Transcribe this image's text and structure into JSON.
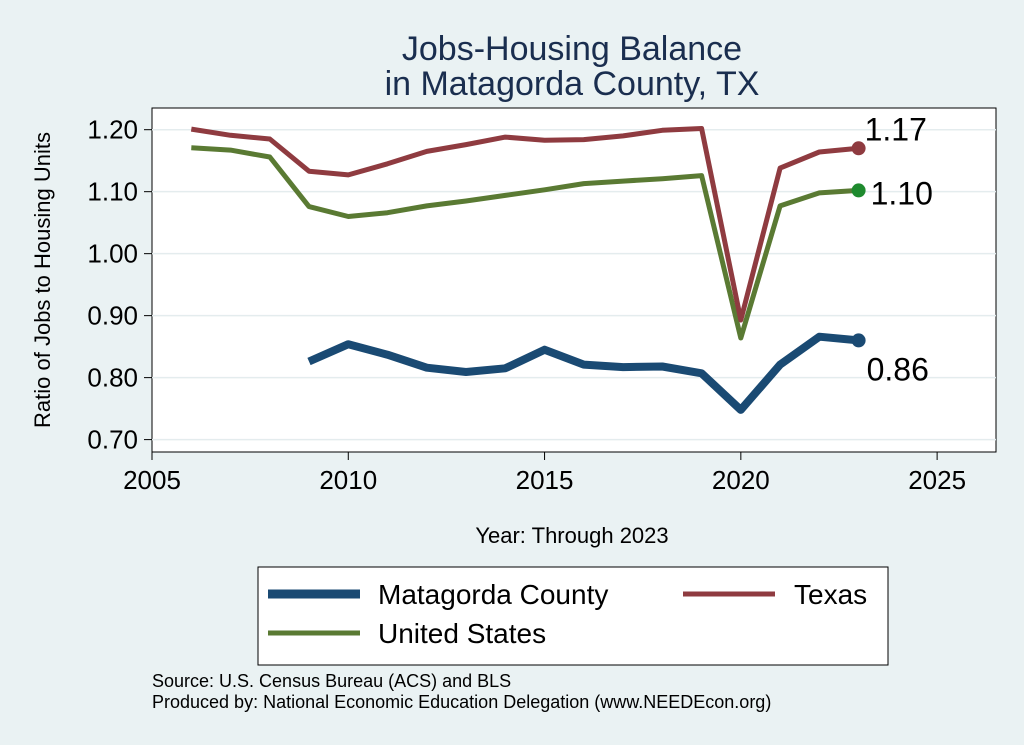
{
  "chart_data": {
    "type": "line",
    "title": [
      "Jobs-Housing Balance",
      "in Matagorda County, TX"
    ],
    "xlabel": "Year: Through 2023",
    "ylabel": "Ratio of Jobs to Housing Units",
    "xlim": [
      2005,
      2026.5
    ],
    "ylim": [
      0.68,
      1.235
    ],
    "xticks": [
      2005,
      2010,
      2015,
      2020,
      2025
    ],
    "yticks": [
      0.7,
      0.8,
      0.9,
      1.0,
      1.1,
      1.2
    ],
    "ytick_labels": [
      "0.70",
      "0.80",
      "0.90",
      "1.00",
      "1.10",
      "1.20"
    ],
    "grid": true,
    "series": [
      {
        "name": "Matagorda County",
        "color": "#1a4a73",
        "x": [
          2009,
          2010,
          2011,
          2012,
          2013,
          2014,
          2015,
          2016,
          2017,
          2018,
          2019,
          2020,
          2021,
          2022,
          2023
        ],
        "y": [
          0.826,
          0.854,
          0.837,
          0.816,
          0.809,
          0.815,
          0.845,
          0.821,
          0.817,
          0.818,
          0.807,
          0.748,
          0.821,
          0.866,
          0.86
        ],
        "end_label": "0.86",
        "end_marker_color": "#1a4a73"
      },
      {
        "name": "Texas",
        "color": "#8f3b40",
        "x": [
          2006,
          2007,
          2008,
          2009,
          2010,
          2011,
          2012,
          2013,
          2014,
          2015,
          2016,
          2017,
          2018,
          2019,
          2020,
          2021,
          2022,
          2023
        ],
        "y": [
          1.201,
          1.191,
          1.185,
          1.133,
          1.127,
          1.145,
          1.165,
          1.176,
          1.188,
          1.183,
          1.184,
          1.19,
          1.199,
          1.202,
          0.893,
          1.138,
          1.164,
          1.17
        ],
        "end_label": "1.17",
        "end_marker_color": "#8f3b40"
      },
      {
        "name": "United States",
        "color": "#5a7a33",
        "x": [
          2006,
          2007,
          2008,
          2009,
          2010,
          2011,
          2012,
          2013,
          2014,
          2015,
          2016,
          2017,
          2018,
          2019,
          2020,
          2021,
          2022,
          2023
        ],
        "y": [
          1.171,
          1.167,
          1.156,
          1.076,
          1.06,
          1.066,
          1.077,
          1.085,
          1.094,
          1.103,
          1.113,
          1.117,
          1.121,
          1.126,
          0.864,
          1.077,
          1.098,
          1.102
        ],
        "end_label": "1.10",
        "end_marker_color": "#1e8a2e"
      }
    ],
    "legend": {
      "placement": "bottom",
      "entries": [
        "Matagorda County",
        "Texas",
        "United States"
      ]
    }
  },
  "footer": {
    "source": "Source: U.S. Census Bureau (ACS) and BLS",
    "produced": "Produced by: National Economic Education Delegation (www.NEEDEcon.org)"
  }
}
